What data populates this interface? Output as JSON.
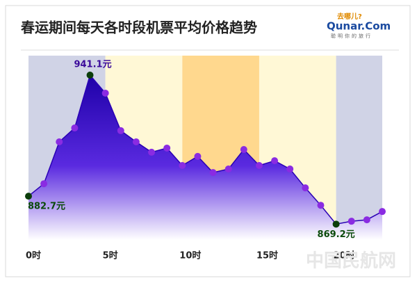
{
  "chart_data": {
    "type": "area",
    "title": "春运期间每天各时段机票平均价格趋势",
    "logo": {
      "top": "去哪儿?",
      "name": "Qunar.Com",
      "slogan": "聪明你的旅行"
    },
    "watermark": "中国民航网",
    "x": [
      0,
      1,
      2,
      3,
      4,
      5,
      6,
      7,
      8,
      9,
      10,
      11,
      12,
      13,
      14,
      15,
      16,
      17,
      18,
      19,
      20,
      21,
      22,
      23
    ],
    "values": [
      882.7,
      888.7,
      908.9,
      915.6,
      941.1,
      932.4,
      914.3,
      908.9,
      903.9,
      905.9,
      897.5,
      901.9,
      894.1,
      895.8,
      905.2,
      897.5,
      899.8,
      895.8,
      886.7,
      878.3,
      869.2,
      870.6,
      871.3,
      875.3
    ],
    "value_labels": [
      "882.7元",
      null,
      null,
      null,
      "941.1元",
      null,
      null,
      null,
      null,
      null,
      null,
      null,
      null,
      null,
      null,
      null,
      null,
      null,
      null,
      null,
      "869.2元",
      null,
      null,
      null
    ],
    "color": "#2a00b4",
    "point_color": "#8a2be2",
    "label_point_color": "#0b3d0b",
    "xlim": [
      0,
      23
    ],
    "ylim": [
      861.6,
      950.5
    ],
    "xticks": [
      {
        "value": 0,
        "label": "0时"
      },
      {
        "value": 5,
        "label": "5时"
      },
      {
        "value": 10,
        "label": "10时"
      },
      {
        "value": 15,
        "label": "15时"
      },
      {
        "value": 20,
        "label": "20时"
      }
    ],
    "bands": [
      {
        "from": 0,
        "to": 5,
        "color": "#d0d3e6"
      },
      {
        "from": 5,
        "to": 10,
        "color": "#fff8d6"
      },
      {
        "from": 10,
        "to": 15,
        "color": "#ffd88e"
      },
      {
        "from": 15,
        "to": 20,
        "color": "#fff8d6"
      },
      {
        "from": 20,
        "to": 23,
        "color": "#d0d3e6"
      }
    ]
  }
}
